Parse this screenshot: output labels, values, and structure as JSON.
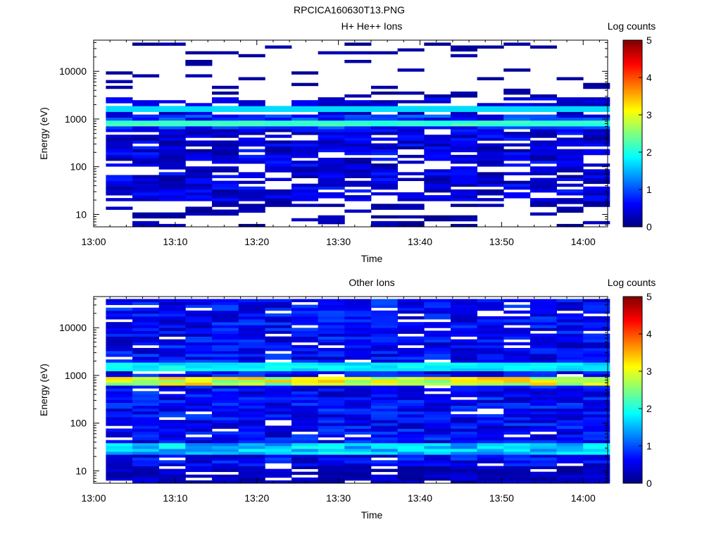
{
  "figure": {
    "title": "RPCICA160630T13.PNG"
  },
  "colors": {
    "background": "#ffffff",
    "axis": "#000000",
    "colormap": "jet"
  },
  "chart_data": [
    {
      "type": "heatmap",
      "id": "top",
      "title": "H+ He++ Ions",
      "xlabel": "Time",
      "ylabel": "Energy (eV)",
      "yscale": "log",
      "ylim": [
        5.5,
        45000
      ],
      "xlim_minutes": [
        0,
        63
      ],
      "x_ticks": [
        "13:00",
        "13:10",
        "13:20",
        "13:30",
        "13:40",
        "13:50",
        "14:00"
      ],
      "y_ticks": [
        "10",
        "100",
        "1000",
        "10000"
      ],
      "time_bins": [
        "13:01:30",
        "13:04:45",
        "13:08:00",
        "13:11:15",
        "13:14:30",
        "13:17:45",
        "13:21:00",
        "13:24:15",
        "13:27:30",
        "13:30:45",
        "13:34:00",
        "13:37:15",
        "13:40:30",
        "13:43:45",
        "13:47:00",
        "13:50:15",
        "13:53:30",
        "13:56:45",
        "14:00:00"
      ],
      "colorbar": {
        "label": "Log counts",
        "ticks": [
          "0",
          "1",
          "2",
          "3",
          "4",
          "5"
        ],
        "range": [
          0,
          5
        ]
      },
      "grid": false
    },
    {
      "type": "heatmap",
      "id": "bottom",
      "title": "Other Ions",
      "xlabel": "Time",
      "ylabel": "Energy (eV)",
      "yscale": "log",
      "ylim": [
        5.5,
        45000
      ],
      "xlim_minutes": [
        0,
        63
      ],
      "x_ticks": [
        "13:00",
        "13:10",
        "13:20",
        "13:30",
        "13:40",
        "13:50",
        "14:00"
      ],
      "y_ticks": [
        "10",
        "100",
        "1000",
        "10000"
      ],
      "time_bins": [
        "13:01:30",
        "13:04:45",
        "13:08:00",
        "13:11:15",
        "13:14:30",
        "13:17:45",
        "13:21:00",
        "13:24:15",
        "13:27:30",
        "13:30:45",
        "13:34:00",
        "13:37:15",
        "13:40:30",
        "13:43:45",
        "13:47:00",
        "13:50:15",
        "13:53:30",
        "13:56:45",
        "14:00:00"
      ],
      "colorbar": {
        "label": "Log counts",
        "ticks": [
          "0",
          "1",
          "2",
          "3",
          "4",
          "5"
        ],
        "range": [
          0,
          5
        ]
      },
      "grid": false
    }
  ]
}
